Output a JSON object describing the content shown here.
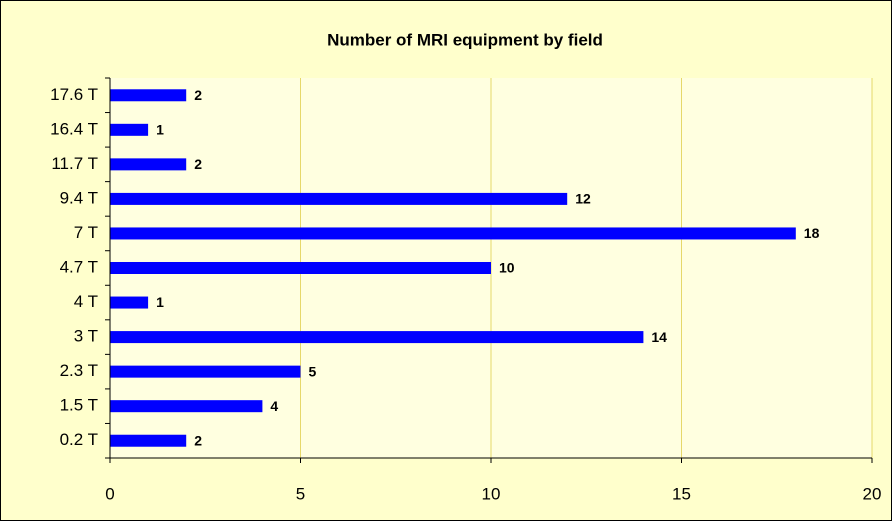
{
  "chart_data": {
    "type": "bar",
    "orientation": "horizontal",
    "title": "Number of MRI equipment by field",
    "categories": [
      "0.2 T",
      "1.5 T",
      "2.3 T",
      "3 T",
      "4 T",
      "4.7 T",
      "7 T",
      "9.4 T",
      "11.7 T",
      "16.4 T",
      "17.6 T"
    ],
    "values": [
      2,
      4,
      5,
      14,
      1,
      10,
      18,
      12,
      2,
      1,
      2
    ],
    "color": "#0000ff",
    "xlim": [
      0,
      20
    ],
    "xticks": [
      0,
      5,
      10,
      15,
      20
    ],
    "grid": true
  }
}
